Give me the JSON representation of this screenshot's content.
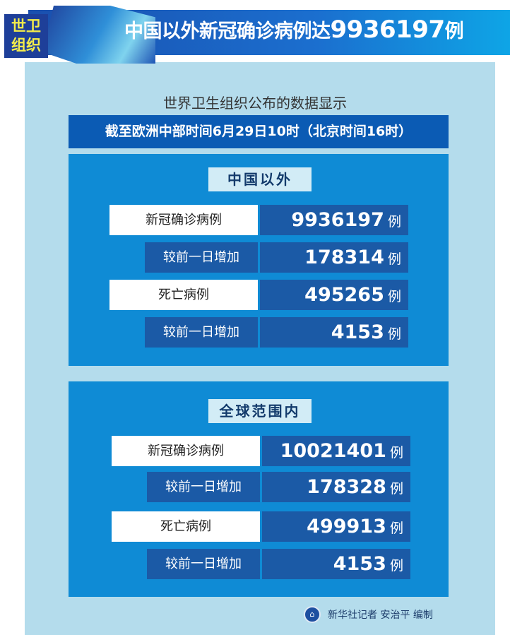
{
  "header": {
    "badge_line1": "世卫",
    "badge_line2": "组织",
    "title_text": "中国以外新冠确诊病例达",
    "title_number": "9936197",
    "title_unit": "例"
  },
  "subtitle": "世界卫生组织公布的数据显示",
  "date_bar": "截至欧洲中部时间6月29日10时（北京时间16时）",
  "sections": [
    {
      "heading": "中国以外",
      "rows": [
        {
          "label": "新冠确诊病例",
          "value": "9936197",
          "unit": "例"
        },
        {
          "label": "较前一日增加",
          "value": "178314",
          "unit": "例"
        },
        {
          "label": "死亡病例",
          "value": "495265",
          "unit": "例"
        },
        {
          "label": "较前一日增加",
          "value": "4153",
          "unit": "例"
        }
      ]
    },
    {
      "heading": "全球范围内",
      "rows": [
        {
          "label": "新冠确诊病例",
          "value": "10021401",
          "unit": "例"
        },
        {
          "label": "较前一日增加",
          "value": "178328",
          "unit": "例"
        },
        {
          "label": "死亡病例",
          "value": "499913",
          "unit": "例"
        },
        {
          "label": "较前一日增加",
          "value": "4153",
          "unit": "例"
        }
      ]
    }
  ],
  "footer": {
    "credit": "新华社记者 安治平 编制",
    "logo_icon": "xinhua-logo-icon"
  },
  "colors": {
    "panel": "#0f8bd5",
    "dark_box": "#1b5aa6",
    "background": "#b4dcec",
    "badge_text": "#f4ec4a"
  }
}
